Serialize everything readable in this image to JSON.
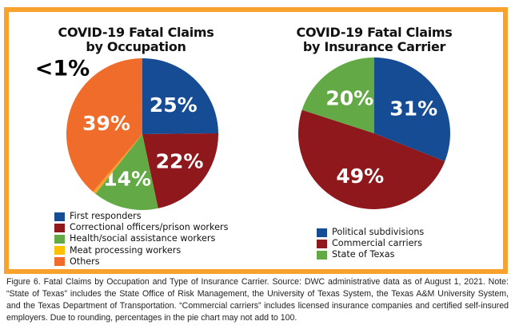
{
  "chart_data": [
    {
      "type": "pie",
      "title": "COVID-19 Fatal Claims by Occupation",
      "title_lines": [
        "COVID-19 Fatal Claims",
        "by Occupation"
      ],
      "categories": [
        "First responders",
        "Correctional officers/prison workers",
        "Health/social assistance workers",
        "Meat processing workers",
        "Others"
      ],
      "values": [
        25,
        22,
        14,
        0.7,
        39
      ],
      "labels": [
        "25%",
        "22%",
        "14%",
        "<1%",
        "39%"
      ],
      "colors": [
        "#154C94",
        "#8E181C",
        "#63AA47",
        "#F8A12B",
        "#F06C2A"
      ],
      "legend_colors": [
        "#154C94",
        "#8E181C",
        "#63AA47",
        "#FFC000",
        "#F06C2A"
      ],
      "legend_position": "bottom"
    },
    {
      "type": "pie",
      "title": "COVID-19 Fatal Claims by Insurance Carrier",
      "title_lines": [
        "COVID-19 Fatal Claims",
        "by Insurance Carrier"
      ],
      "categories": [
        "Political subdivisions",
        "Commercial carriers",
        "State of Texas"
      ],
      "values": [
        31,
        49,
        20
      ],
      "labels": [
        "31%",
        "49%",
        "20%"
      ],
      "colors": [
        "#154C94",
        "#8E181C",
        "#63AA47"
      ],
      "legend_colors": [
        "#154C94",
        "#8E181C",
        "#63AA47"
      ],
      "legend_position": "bottom"
    }
  ],
  "frame_color": "#F8A12B",
  "caption": "Figure 6. Fatal Claims by Occupation and Type of Insurance Carrier. Source: DWC administrative data as of August 1, 2021. Note: “State of Texas” includes the State Office of Risk Management, the University of Texas System, the Texas A&M University System, and the Texas Department of Transportation. “Commercial carriers” includes licensed insurance companies and certified self-insured employers. Due to rounding, percentages in the pie chart may not add to 100."
}
